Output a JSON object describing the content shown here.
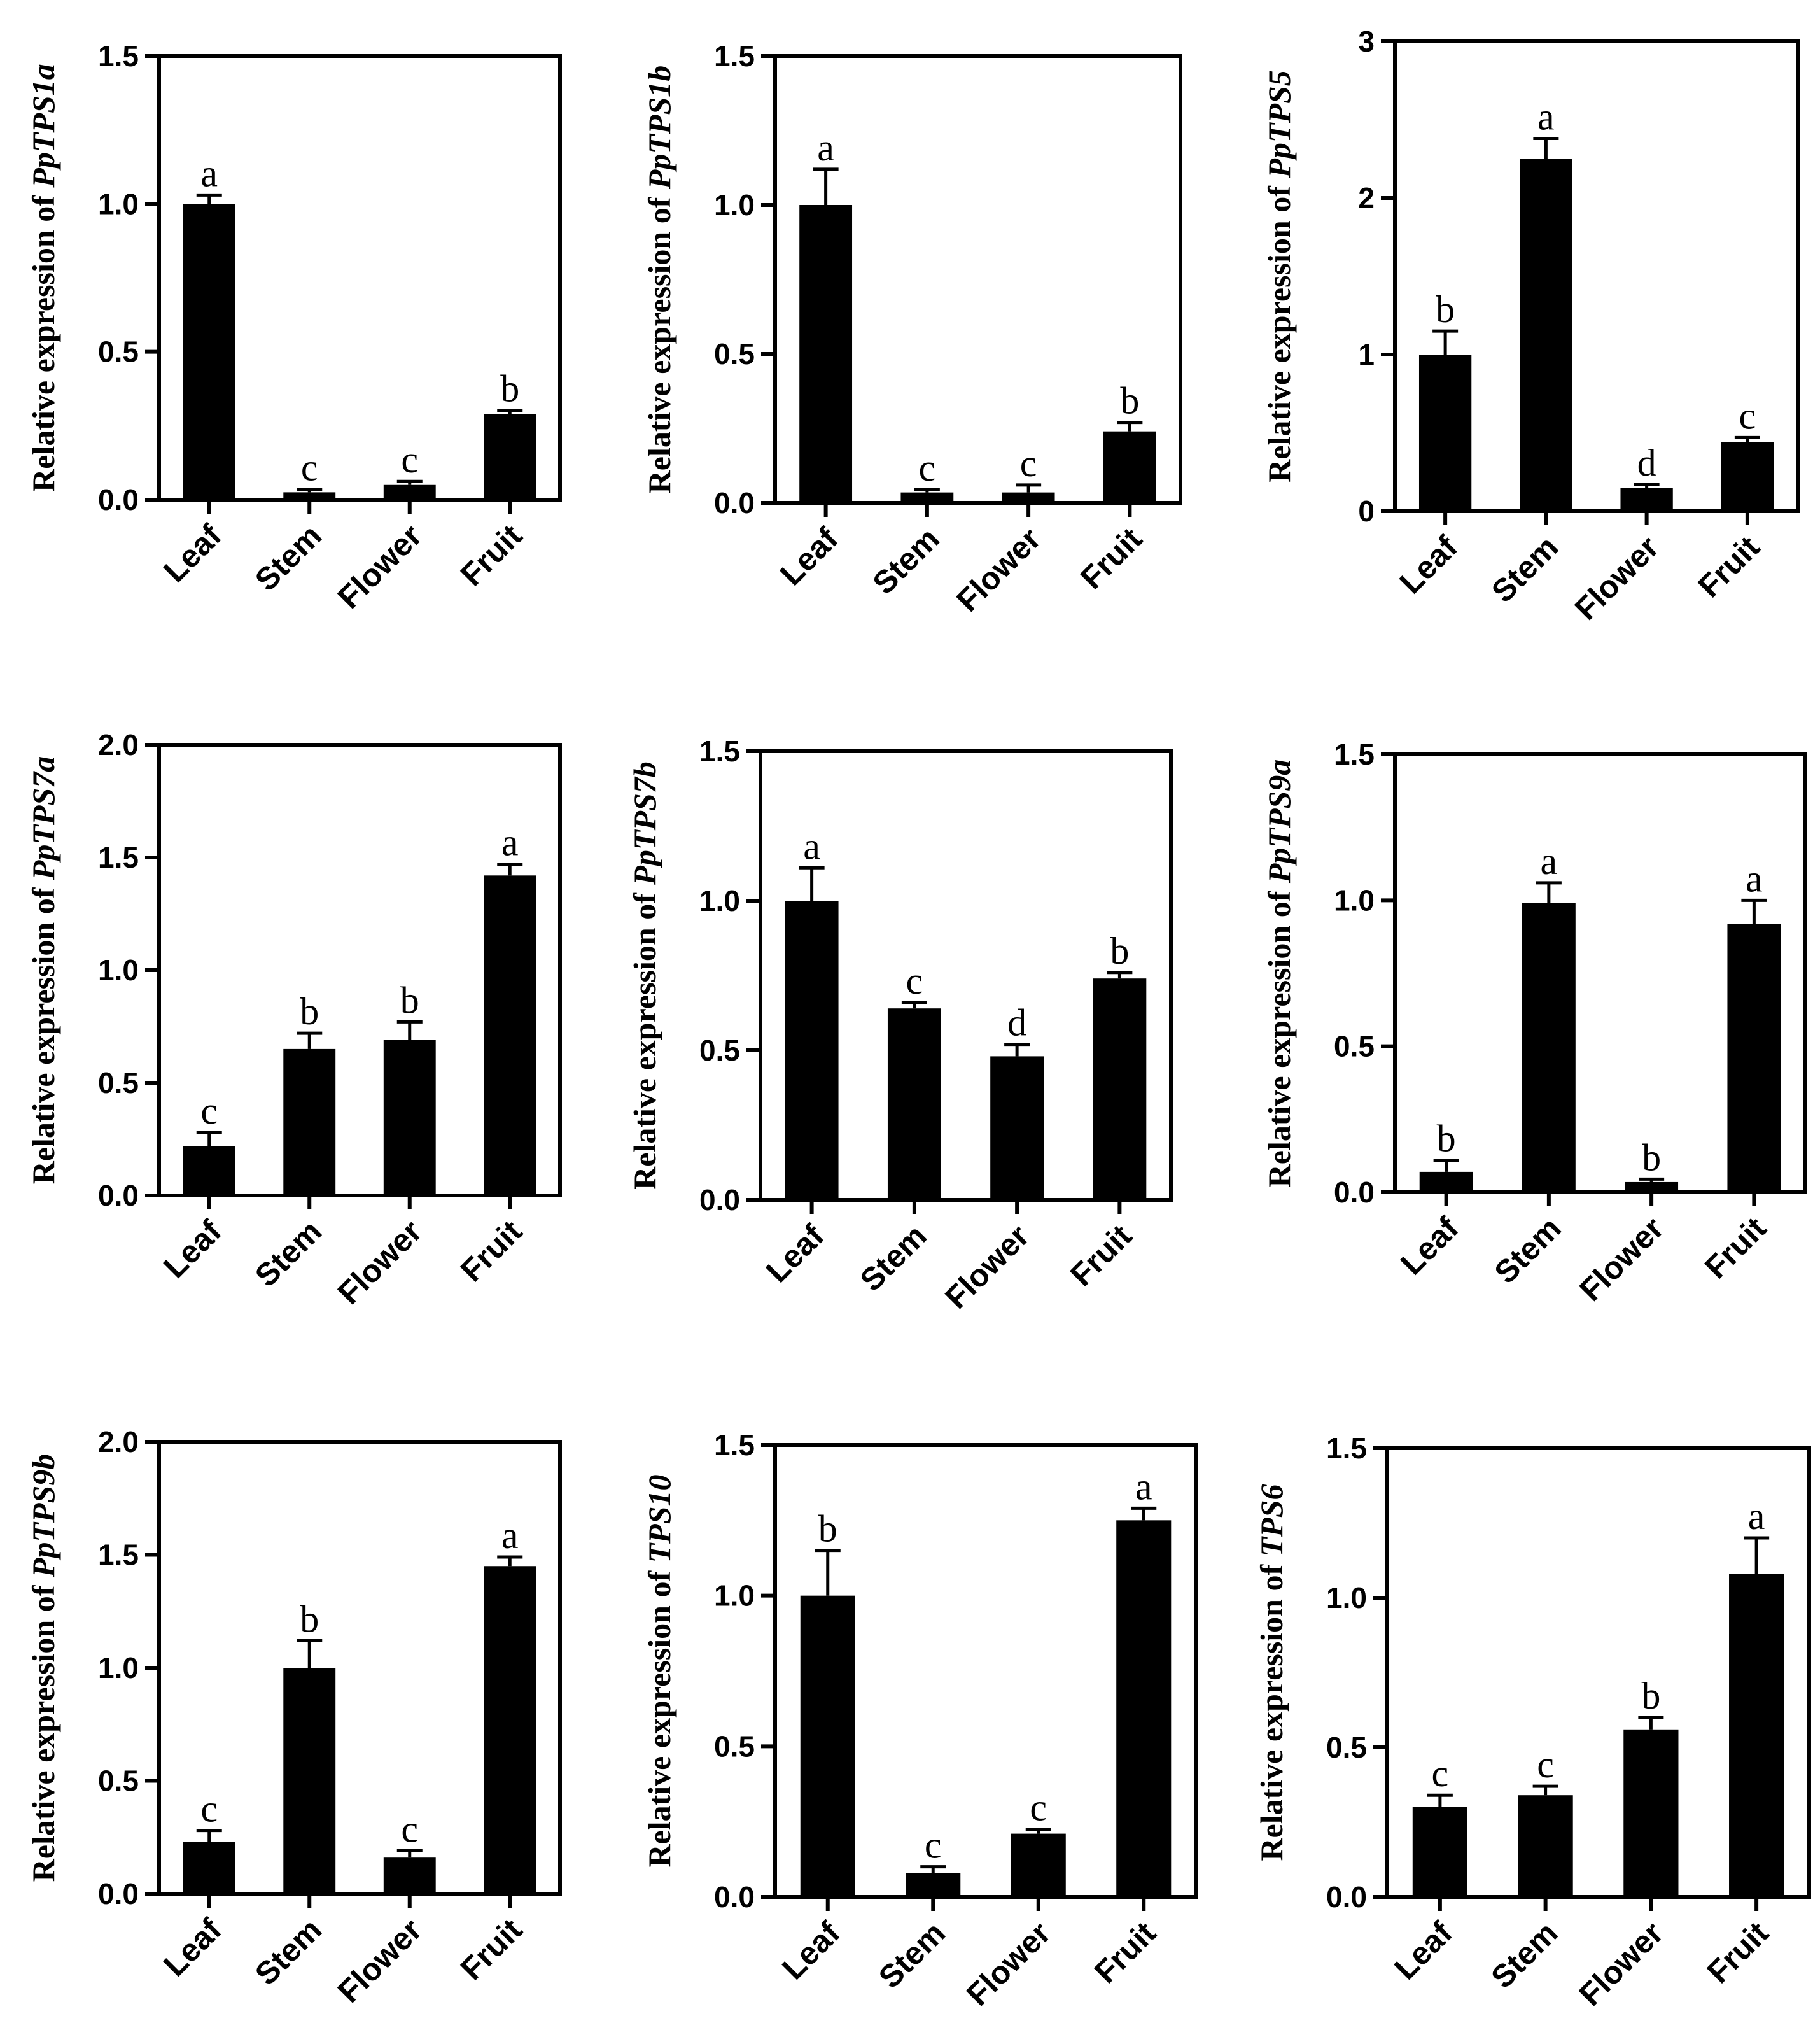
{
  "figure": {
    "ylabel_prefix": "Relative expression of",
    "panel_count": 9
  },
  "chart_data": [
    {
      "type": "bar",
      "gene": "PpTPS1a",
      "categories": [
        "Leaf",
        "Stem",
        "Flower",
        "Fruit"
      ],
      "values": [
        1.0,
        0.025,
        0.05,
        0.29
      ],
      "errors": [
        0.03,
        0.01,
        0.012,
        0.012
      ],
      "letters": [
        "a",
        "c",
        "c",
        "b"
      ],
      "ylim": [
        0,
        1.5
      ],
      "yticks": [
        "0.0",
        "0.5",
        "1.0",
        "1.5"
      ],
      "ytick_values": [
        0,
        0.5,
        1.0,
        1.5
      ]
    },
    {
      "type": "bar",
      "gene": "PpTPS1b",
      "categories": [
        "Leaf",
        "Stem",
        "Flower",
        "Fruit"
      ],
      "values": [
        1.0,
        0.035,
        0.035,
        0.24
      ],
      "errors": [
        0.12,
        0.01,
        0.025,
        0.03
      ],
      "letters": [
        "a",
        "c",
        "c",
        "b"
      ],
      "ylim": [
        0,
        1.5
      ],
      "yticks": [
        "0.0",
        "0.5",
        "1.0",
        "1.5"
      ],
      "ytick_values": [
        0,
        0.5,
        1.0,
        1.5
      ]
    },
    {
      "type": "bar",
      "gene": "PpTPS5",
      "categories": [
        "Leaf",
        "Stem",
        "Flower",
        "Fruit"
      ],
      "values": [
        1.0,
        2.25,
        0.15,
        0.44
      ],
      "errors": [
        0.15,
        0.13,
        0.02,
        0.03
      ],
      "letters": [
        "b",
        "a",
        "d",
        "c"
      ],
      "ylim": [
        0,
        3
      ],
      "yticks": [
        "0",
        "1",
        "2",
        "3"
      ],
      "ytick_values": [
        0,
        1,
        2,
        3
      ]
    },
    {
      "type": "bar",
      "gene": "PpTPS7a",
      "categories": [
        "Leaf",
        "Stem",
        "Flower",
        "Fruit"
      ],
      "values": [
        0.22,
        0.65,
        0.69,
        1.42
      ],
      "errors": [
        0.06,
        0.07,
        0.08,
        0.05
      ],
      "letters": [
        "c",
        "b",
        "b",
        "a"
      ],
      "ylim": [
        0,
        2.0
      ],
      "yticks": [
        "0.0",
        "0.5",
        "1.0",
        "1.5",
        "2.0"
      ],
      "ytick_values": [
        0,
        0.5,
        1.0,
        1.5,
        2.0
      ]
    },
    {
      "type": "bar",
      "gene": "PpTPS7b",
      "categories": [
        "Leaf",
        "Stem",
        "Flower",
        "Fruit"
      ],
      "values": [
        1.0,
        0.64,
        0.48,
        0.74
      ],
      "errors": [
        0.11,
        0.02,
        0.04,
        0.02
      ],
      "letters": [
        "a",
        "c",
        "d",
        "b"
      ],
      "ylim": [
        0,
        1.5
      ],
      "yticks": [
        "0.0",
        "0.5",
        "1.0",
        "1.5"
      ],
      "ytick_values": [
        0,
        0.5,
        1.0,
        1.5
      ]
    },
    {
      "type": "bar",
      "gene": "PpTPS9a",
      "categories": [
        "Leaf",
        "Stem",
        "Flower",
        "Fruit"
      ],
      "values": [
        0.07,
        0.99,
        0.035,
        0.92
      ],
      "errors": [
        0.04,
        0.07,
        0.01,
        0.08
      ],
      "letters": [
        "b",
        "a",
        "b",
        "a"
      ],
      "ylim": [
        0,
        1.5
      ],
      "yticks": [
        "0.0",
        "0.5",
        "1.0",
        "1.5"
      ],
      "ytick_values": [
        0,
        0.5,
        1.0,
        1.5
      ]
    },
    {
      "type": "bar",
      "gene": "PpTPS9b",
      "categories": [
        "Leaf",
        "Stem",
        "Flower",
        "Fruit"
      ],
      "values": [
        0.23,
        1.0,
        0.16,
        1.45
      ],
      "errors": [
        0.05,
        0.12,
        0.03,
        0.04
      ],
      "letters": [
        "c",
        "b",
        "c",
        "a"
      ],
      "ylim": [
        0,
        2.0
      ],
      "yticks": [
        "0.0",
        "0.5",
        "1.0",
        "1.5",
        "2.0"
      ],
      "ytick_values": [
        0,
        0.5,
        1.0,
        1.5,
        2.0
      ]
    },
    {
      "type": "bar",
      "gene": "TPS10",
      "categories": [
        "Leaf",
        "Stem",
        "Flower",
        "Fruit"
      ],
      "values": [
        1.0,
        0.08,
        0.21,
        1.25
      ],
      "errors": [
        0.15,
        0.02,
        0.015,
        0.04
      ],
      "letters": [
        "b",
        "c",
        "c",
        "a"
      ],
      "ylim": [
        0,
        1.5
      ],
      "yticks": [
        "0.0",
        "0.5",
        "1.0",
        "1.5"
      ],
      "ytick_values": [
        0,
        0.5,
        1.0,
        1.5
      ]
    },
    {
      "type": "bar",
      "gene": "TPS6",
      "categories": [
        "Leaf",
        "Stem",
        "Flower",
        "Fruit"
      ],
      "values": [
        0.3,
        0.34,
        0.56,
        1.08
      ],
      "errors": [
        0.04,
        0.03,
        0.04,
        0.12
      ],
      "letters": [
        "c",
        "c",
        "b",
        "a"
      ],
      "ylim": [
        0,
        1.5
      ],
      "yticks": [
        "0.0",
        "0.5",
        "1.0",
        "1.5"
      ],
      "ytick_values": [
        0,
        0.5,
        1.0,
        1.5
      ]
    }
  ]
}
